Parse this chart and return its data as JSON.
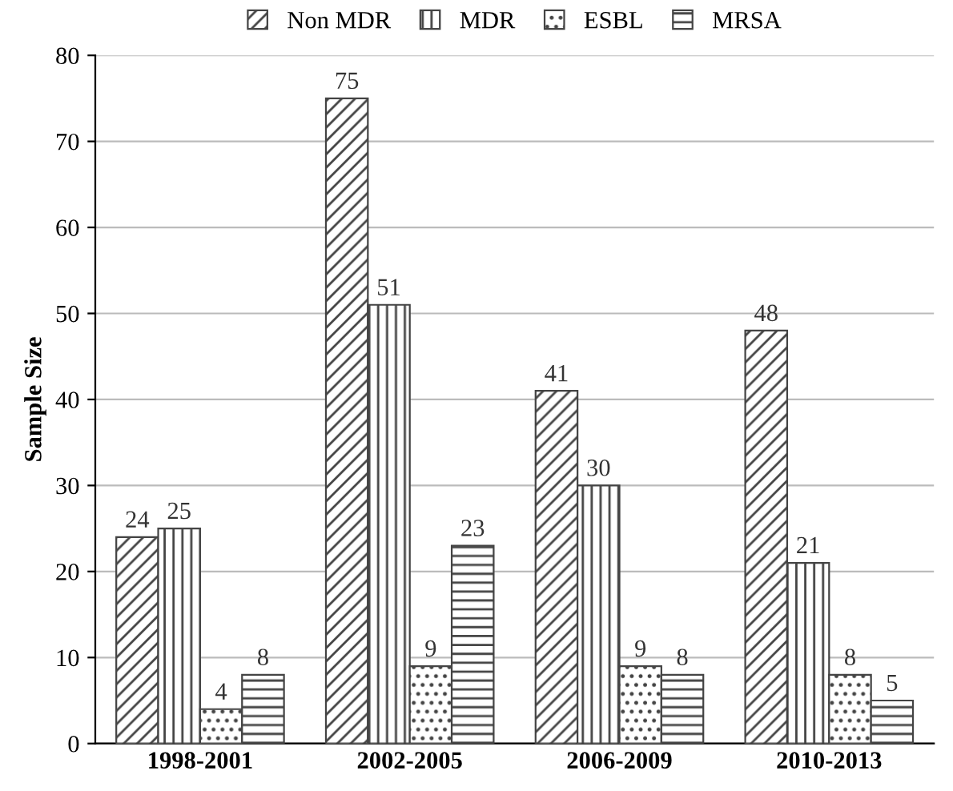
{
  "chart_data": {
    "type": "bar",
    "ylabel": "Sample Size",
    "categories": [
      "1998-2001",
      "2002-2005",
      "2006-2009",
      "2010-2013"
    ],
    "series": [
      {
        "name": "Non MDR",
        "color": "#444444",
        "values": [
          24,
          75,
          41,
          48
        ]
      },
      {
        "name": "MDR",
        "color": "#444444",
        "values": [
          25,
          51,
          30,
          21
        ]
      },
      {
        "name": "ESBL",
        "color": "#444444",
        "values": [
          4,
          9,
          9,
          8
        ]
      },
      {
        "name": "MRSA",
        "color": "#444444",
        "values": [
          8,
          23,
          8,
          5
        ]
      }
    ],
    "ylim": [
      0,
      80
    ],
    "yticks": [
      0,
      10,
      20,
      30,
      40,
      50,
      60,
      70,
      80
    ],
    "grid": "y",
    "legend": "top",
    "data_labels": true
  }
}
